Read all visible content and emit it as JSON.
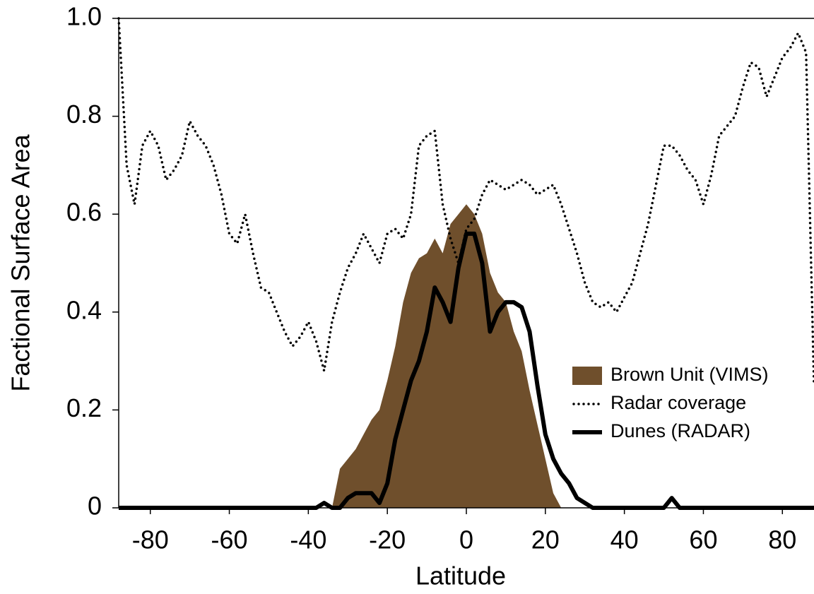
{
  "chart_data": {
    "type": "line",
    "xlabel": "Latitude",
    "ylabel": "Factional Surface Area",
    "x": [
      -88,
      -86,
      -84,
      -82,
      -80,
      -78,
      -76,
      -74,
      -72,
      -70,
      -68,
      -66,
      -64,
      -62,
      -60,
      -58,
      -56,
      -54,
      -52,
      -50,
      -48,
      -46,
      -44,
      -42,
      -40,
      -38,
      -36,
      -34,
      -32,
      -30,
      -28,
      -26,
      -24,
      -22,
      -20,
      -18,
      -16,
      -14,
      -12,
      -10,
      -8,
      -6,
      -4,
      -2,
      0,
      2,
      4,
      6,
      8,
      10,
      12,
      14,
      16,
      18,
      20,
      22,
      24,
      26,
      28,
      30,
      32,
      34,
      36,
      38,
      40,
      42,
      44,
      46,
      48,
      50,
      52,
      54,
      56,
      58,
      60,
      62,
      64,
      66,
      68,
      70,
      72,
      74,
      76,
      78,
      80,
      82,
      84,
      86,
      88
    ],
    "series": [
      {
        "name": "Brown Unit (VIMS)",
        "style": "area",
        "color": "#6f4f2c",
        "values": [
          0,
          0,
          0,
          0,
          0,
          0,
          0,
          0,
          0,
          0,
          0,
          0,
          0,
          0,
          0,
          0,
          0,
          0,
          0,
          0,
          0,
          0,
          0,
          0,
          0,
          0,
          0,
          0,
          0.08,
          0.1,
          0.12,
          0.15,
          0.18,
          0.2,
          0.26,
          0.33,
          0.42,
          0.48,
          0.51,
          0.52,
          0.55,
          0.52,
          0.58,
          0.6,
          0.62,
          0.6,
          0.56,
          0.48,
          0.44,
          0.42,
          0.36,
          0.32,
          0.24,
          0.17,
          0.1,
          0.03,
          0,
          0,
          0,
          0,
          0,
          0,
          0,
          0,
          0,
          0,
          0,
          0,
          0,
          0,
          0,
          0,
          0,
          0,
          0,
          0,
          0,
          0,
          0,
          0,
          0,
          0,
          0,
          0,
          0,
          0,
          0,
          0,
          0
        ]
      },
      {
        "name": "Radar coverage",
        "style": "dotted",
        "color": "#000000",
        "values": [
          1.0,
          0.7,
          0.62,
          0.74,
          0.77,
          0.74,
          0.67,
          0.69,
          0.72,
          0.79,
          0.76,
          0.74,
          0.7,
          0.64,
          0.56,
          0.54,
          0.6,
          0.52,
          0.45,
          0.44,
          0.4,
          0.36,
          0.33,
          0.35,
          0.38,
          0.34,
          0.28,
          0.38,
          0.44,
          0.49,
          0.52,
          0.56,
          0.53,
          0.5,
          0.56,
          0.57,
          0.55,
          0.6,
          0.74,
          0.76,
          0.77,
          0.62,
          0.55,
          0.5,
          0.57,
          0.59,
          0.64,
          0.67,
          0.66,
          0.65,
          0.66,
          0.67,
          0.66,
          0.64,
          0.65,
          0.66,
          0.62,
          0.57,
          0.52,
          0.46,
          0.42,
          0.41,
          0.42,
          0.4,
          0.43,
          0.46,
          0.52,
          0.58,
          0.66,
          0.74,
          0.74,
          0.72,
          0.69,
          0.67,
          0.62,
          0.68,
          0.76,
          0.78,
          0.8,
          0.86,
          0.91,
          0.9,
          0.84,
          0.88,
          0.92,
          0.94,
          0.97,
          0.93,
          0.25
        ]
      },
      {
        "name": "Dunes (RADAR)",
        "style": "thick",
        "color": "#000000",
        "values": [
          0,
          0,
          0,
          0,
          0,
          0,
          0,
          0,
          0,
          0,
          0,
          0,
          0,
          0,
          0,
          0,
          0,
          0,
          0,
          0,
          0,
          0,
          0,
          0,
          0,
          0,
          0.01,
          0,
          0,
          0.02,
          0.03,
          0.03,
          0.03,
          0.01,
          0.05,
          0.14,
          0.2,
          0.26,
          0.3,
          0.36,
          0.45,
          0.42,
          0.38,
          0.49,
          0.56,
          0.56,
          0.5,
          0.36,
          0.4,
          0.42,
          0.42,
          0.41,
          0.36,
          0.25,
          0.15,
          0.1,
          0.07,
          0.05,
          0.02,
          0.01,
          0,
          0,
          0,
          0,
          0,
          0,
          0,
          0,
          0,
          0,
          0.02,
          0,
          0,
          0,
          0,
          0,
          0,
          0,
          0,
          0,
          0,
          0,
          0,
          0,
          0,
          0,
          0,
          0,
          0
        ]
      }
    ],
    "xlim": [
      -88,
      88
    ],
    "xticks": [
      -80,
      -60,
      -40,
      -20,
      0,
      20,
      40,
      60,
      80
    ],
    "ylim": [
      0,
      1
    ],
    "yticks": [
      0,
      0.2,
      0.4,
      0.6,
      0.8,
      {
        "value": 1,
        "label": "1.0"
      }
    ],
    "legend": "right"
  }
}
